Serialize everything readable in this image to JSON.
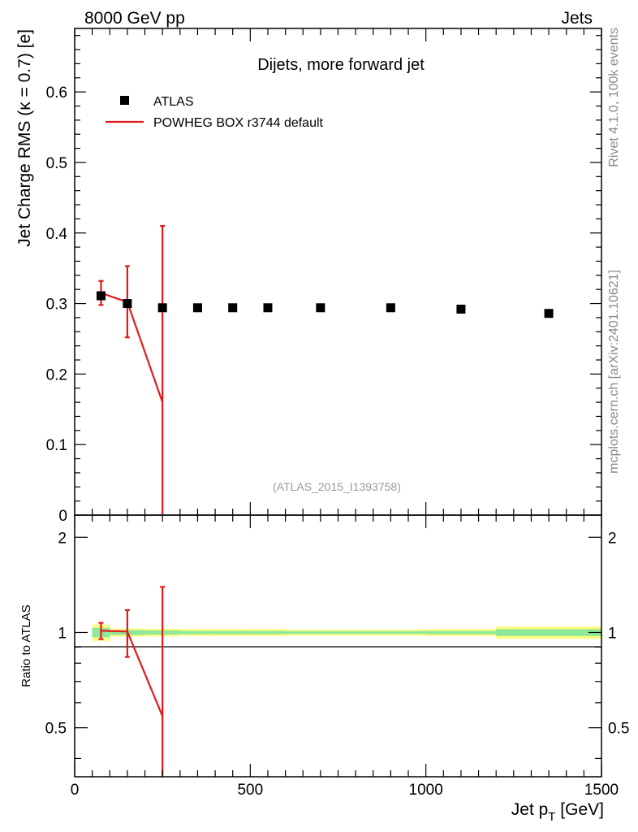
{
  "header": {
    "beam": "8000 GeV pp",
    "category": "Jets"
  },
  "side_labels": {
    "rivet": "Rivet 4.1.0,  100k events",
    "mcplots": "mcplots.cern.ch [arXiv:2401.10621]"
  },
  "chart_data": [
    {
      "type": "scatter",
      "panel": "main",
      "title": "Dijets, more forward jet",
      "analysis_id": "(ATLAS_2015_I1393758)",
      "xlabel": "Jet p_T [GeV]",
      "ylabel": "Jet Charge RMS (κ = 0.7) [e]",
      "xlim": [
        0,
        1500
      ],
      "ylim": [
        0,
        0.69
      ],
      "yticks": [
        0,
        0.1,
        0.2,
        0.3,
        0.4,
        0.5,
        0.6
      ],
      "ytick_labels": [
        "0",
        "0.1",
        "0.2",
        "0.3",
        "0.4",
        "0.5",
        "0.6"
      ],
      "legend_position": "top-left",
      "legend": [
        {
          "label": "ATLAS",
          "style": "marker",
          "color": "#000000"
        },
        {
          "label": "POWHEG BOX r3744 default",
          "style": "line",
          "color": "#e31a1c"
        }
      ],
      "series": [
        {
          "name": "ATLAS",
          "x": [
            75,
            150,
            250,
            350,
            450,
            550,
            700,
            900,
            1100,
            1350
          ],
          "y": [
            0.311,
            0.3,
            0.294,
            0.294,
            0.294,
            0.294,
            0.294,
            0.294,
            0.292,
            0.286
          ],
          "x_low": [
            50,
            100,
            200,
            300,
            400,
            500,
            600,
            800,
            1000,
            1200
          ],
          "x_high": [
            100,
            200,
            300,
            400,
            500,
            600,
            800,
            1000,
            1200,
            1500
          ]
        },
        {
          "name": "POWHEG BOX r3744 default",
          "x": [
            75,
            150,
            250
          ],
          "y": [
            0.315,
            0.302,
            0.16
          ],
          "y_err_low": [
            0.017,
            0.05,
            0.16
          ],
          "y_err_high": [
            0.017,
            0.051,
            0.25
          ]
        }
      ]
    },
    {
      "type": "line",
      "panel": "ratio",
      "ylabel": "Ratio to ATLAS",
      "xlim": [
        0,
        1500
      ],
      "ylim": [
        0.35,
        2.35
      ],
      "yticks": [
        0.5,
        1,
        2
      ],
      "ytick_labels": [
        "0.5",
        "1",
        "2"
      ],
      "xticks": [
        0,
        500,
        1000,
        1500
      ],
      "xtick_labels": [
        "0",
        "500",
        "1000",
        "1500"
      ],
      "band": {
        "x_low": [
          50,
          100,
          200,
          300,
          400,
          500,
          600,
          800,
          1000,
          1200
        ],
        "x_high": [
          100,
          200,
          300,
          400,
          500,
          600,
          800,
          1000,
          1200,
          1500
        ],
        "stat": [
          0.035,
          0.018,
          0.015,
          0.012,
          0.012,
          0.012,
          0.01,
          0.01,
          0.012,
          0.025
        ],
        "total": [
          0.06,
          0.03,
          0.028,
          0.025,
          0.025,
          0.025,
          0.022,
          0.022,
          0.025,
          0.045
        ],
        "stat_color": "#8ee89a",
        "total_color": "#fdfd80"
      },
      "series": [
        {
          "name": "POWHEG BOX r3744 default",
          "x": [
            75,
            150,
            250
          ],
          "y": [
            1.013,
            1.007,
            0.544
          ],
          "y_err_low": [
            0.06,
            0.17,
            0.544
          ],
          "y_err_high": [
            0.06,
            0.17,
            0.85
          ]
        }
      ]
    }
  ]
}
